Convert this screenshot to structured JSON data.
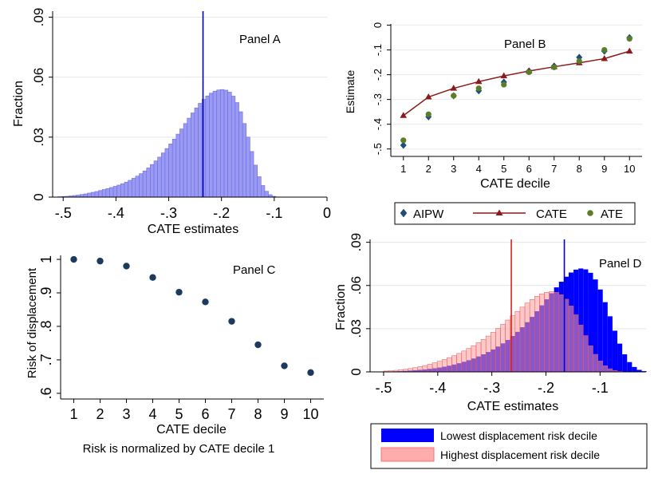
{
  "chart_data": [
    {
      "panel": "A",
      "type": "bar",
      "title": "Panel A",
      "xlabel": "CATE estimates",
      "ylabel": "Fraction",
      "xlim": [
        -0.52,
        0.0
      ],
      "ylim": [
        0,
        0.093
      ],
      "x_ticks": [
        -0.5,
        -0.4,
        -0.3,
        -0.2,
        -0.1,
        0
      ],
      "x_tick_labels": [
        "-.5",
        "-.4",
        "-.3",
        "-.2",
        "-.1",
        "0"
      ],
      "y_ticks": [
        0,
        0.03,
        0.06,
        0.09
      ],
      "y_tick_labels": [
        "0",
        ".03",
        ".06",
        ".09"
      ],
      "bin_width": 0.007,
      "bin_start": -0.51,
      "values": [
        0.0002,
        0.0003,
        0.0004,
        0.0006,
        0.0008,
        0.001,
        0.0013,
        0.0016,
        0.002,
        0.0024,
        0.0028,
        0.0033,
        0.0038,
        0.0043,
        0.0048,
        0.0054,
        0.006,
        0.0067,
        0.0075,
        0.0084,
        0.0094,
        0.0105,
        0.0117,
        0.0131,
        0.0146,
        0.0163,
        0.0181,
        0.02,
        0.0221,
        0.0243,
        0.0266,
        0.029,
        0.0315,
        0.0341,
        0.0368,
        0.0395,
        0.0421,
        0.0446,
        0.0469,
        0.0489,
        0.0506,
        0.052,
        0.053,
        0.0536,
        0.0538,
        0.0535,
        0.0525,
        0.0505,
        0.0473,
        0.0427,
        0.0368,
        0.03,
        0.0228,
        0.016,
        0.0102,
        0.0058,
        0.0029,
        0.0012,
        0.0004,
        0.0001
      ],
      "vline": -0.235,
      "colors": {
        "bar": "#9a9af2",
        "edge": "#6a6ae6",
        "vline": "#0000b8"
      }
    },
    {
      "panel": "B",
      "type": "line",
      "title": "Panel B",
      "xlabel": "CATE decile",
      "ylabel": "Estimate",
      "categories": [
        1,
        2,
        3,
        4,
        5,
        6,
        7,
        8,
        9,
        10
      ],
      "xlim": [
        0.5,
        10.5
      ],
      "ylim": [
        -0.53,
        0.005
      ],
      "y_ticks": [
        -0.5,
        -0.4,
        -0.3,
        -0.2,
        -0.1,
        0
      ],
      "y_tick_labels": [
        "-.5",
        "-.4",
        "-.3",
        "-.2",
        "-.1",
        "0"
      ],
      "series": [
        {
          "name": "AIPW",
          "marker": "diamond",
          "color": "#1f4e79",
          "values": [
            -0.485,
            -0.37,
            -0.285,
            -0.265,
            -0.23,
            -0.185,
            -0.165,
            -0.13,
            -0.105,
            -0.05
          ]
        },
        {
          "name": "CATE",
          "marker": "triangle",
          "color": "#8b1a1a",
          "values": [
            -0.365,
            -0.29,
            -0.255,
            -0.228,
            -0.205,
            -0.185,
            -0.168,
            -0.152,
            -0.135,
            -0.105
          ]
        },
        {
          "name": "ATE",
          "marker": "circle",
          "color": "#5a7d2a",
          "values": [
            -0.465,
            -0.36,
            -0.285,
            -0.255,
            -0.24,
            -0.19,
            -0.17,
            -0.145,
            -0.1,
            -0.055
          ]
        }
      ]
    },
    {
      "panel": "C",
      "type": "scatter",
      "title": "Panel C",
      "xlabel": "CATE decile",
      "ylabel": "Risk of displacement",
      "note": "Risk is normalized by CATE decile 1",
      "x": [
        1,
        2,
        3,
        4,
        5,
        6,
        7,
        8,
        9,
        10
      ],
      "values": [
        1.0,
        0.995,
        0.98,
        0.946,
        0.902,
        0.873,
        0.815,
        0.745,
        0.682,
        0.662
      ],
      "xlim": [
        0.5,
        10.5
      ],
      "ylim": [
        0.583,
        1.012
      ],
      "y_ticks": [
        0.6,
        0.7,
        0.8,
        0.9,
        1
      ],
      "y_tick_labels": [
        ".6",
        ".7",
        ".8",
        ".9",
        "1"
      ],
      "colors": {
        "marker": "#1b3a5c"
      }
    },
    {
      "panel": "D",
      "type": "bar",
      "title": "Panel D",
      "xlabel": "CATE estimates",
      "ylabel": "Fraction",
      "xlim": [
        -0.525,
        -0.015
      ],
      "ylim": [
        0,
        0.092
      ],
      "x_ticks": [
        -0.5,
        -0.4,
        -0.3,
        -0.2,
        -0.1
      ],
      "x_tick_labels": [
        "-.5",
        "-.4",
        "-.3",
        "-.2",
        "-.1"
      ],
      "y_ticks": [
        0,
        0.03,
        0.06,
        0.09
      ],
      "y_tick_labels": [
        "0",
        ".03",
        ".06",
        ".09"
      ],
      "bin_width": 0.009,
      "bin_start": -0.5,
      "series": [
        {
          "name": "Lowest displacement risk decile",
          "color": "#0000ff",
          "values": [
            0.0002,
            0.0003,
            0.0004,
            0.0005,
            0.0007,
            0.0009,
            0.0011,
            0.0014,
            0.0017,
            0.0021,
            0.0025,
            0.003,
            0.0036,
            0.0043,
            0.0051,
            0.006,
            0.007,
            0.0081,
            0.0093,
            0.0107,
            0.0122,
            0.0138,
            0.0156,
            0.0176,
            0.0198,
            0.0222,
            0.0249,
            0.0278,
            0.031,
            0.0345,
            0.0382,
            0.0421,
            0.0462,
            0.0504,
            0.0546,
            0.0587,
            0.0626,
            0.0661,
            0.069,
            0.071,
            0.0718,
            0.0712,
            0.0688,
            0.0642,
            0.0572,
            0.0484,
            0.0386,
            0.0286,
            0.0196,
            0.0122,
            0.0068,
            0.0034,
            0.0014,
            0.0005
          ]
        },
        {
          "name": "Highest displacement risk decile",
          "color": "#ff9a9a",
          "values": [
            0.0006,
            0.0008,
            0.0011,
            0.0014,
            0.0018,
            0.0023,
            0.0029,
            0.0036,
            0.0044,
            0.0053,
            0.0063,
            0.0074,
            0.0086,
            0.0099,
            0.0113,
            0.0128,
            0.0145,
            0.0163,
            0.0182,
            0.0203,
            0.0225,
            0.0249,
            0.0275,
            0.0302,
            0.033,
            0.036,
            0.039,
            0.042,
            0.045,
            0.0478,
            0.0503,
            0.0525,
            0.0542,
            0.0553,
            0.0558,
            0.0553,
            0.0536,
            0.0505,
            0.0458,
            0.0397,
            0.0326,
            0.0252,
            0.0182,
            0.0122,
            0.0076,
            0.0043,
            0.0022,
            0.001,
            0.0004,
            0.0001,
            0,
            0,
            0,
            0
          ]
        }
      ],
      "vlines": [
        {
          "x": -0.264,
          "color": "#e02020"
        },
        {
          "x": -0.166,
          "color": "#0000cc"
        }
      ]
    }
  ],
  "legend_b": {
    "items": [
      {
        "name": "AIPW"
      },
      {
        "name": "CATE"
      },
      {
        "name": "ATE"
      }
    ]
  },
  "legend_d": {
    "items": [
      {
        "name": "Lowest displacement risk decile"
      },
      {
        "name": "Highest displacement risk decile"
      }
    ]
  }
}
